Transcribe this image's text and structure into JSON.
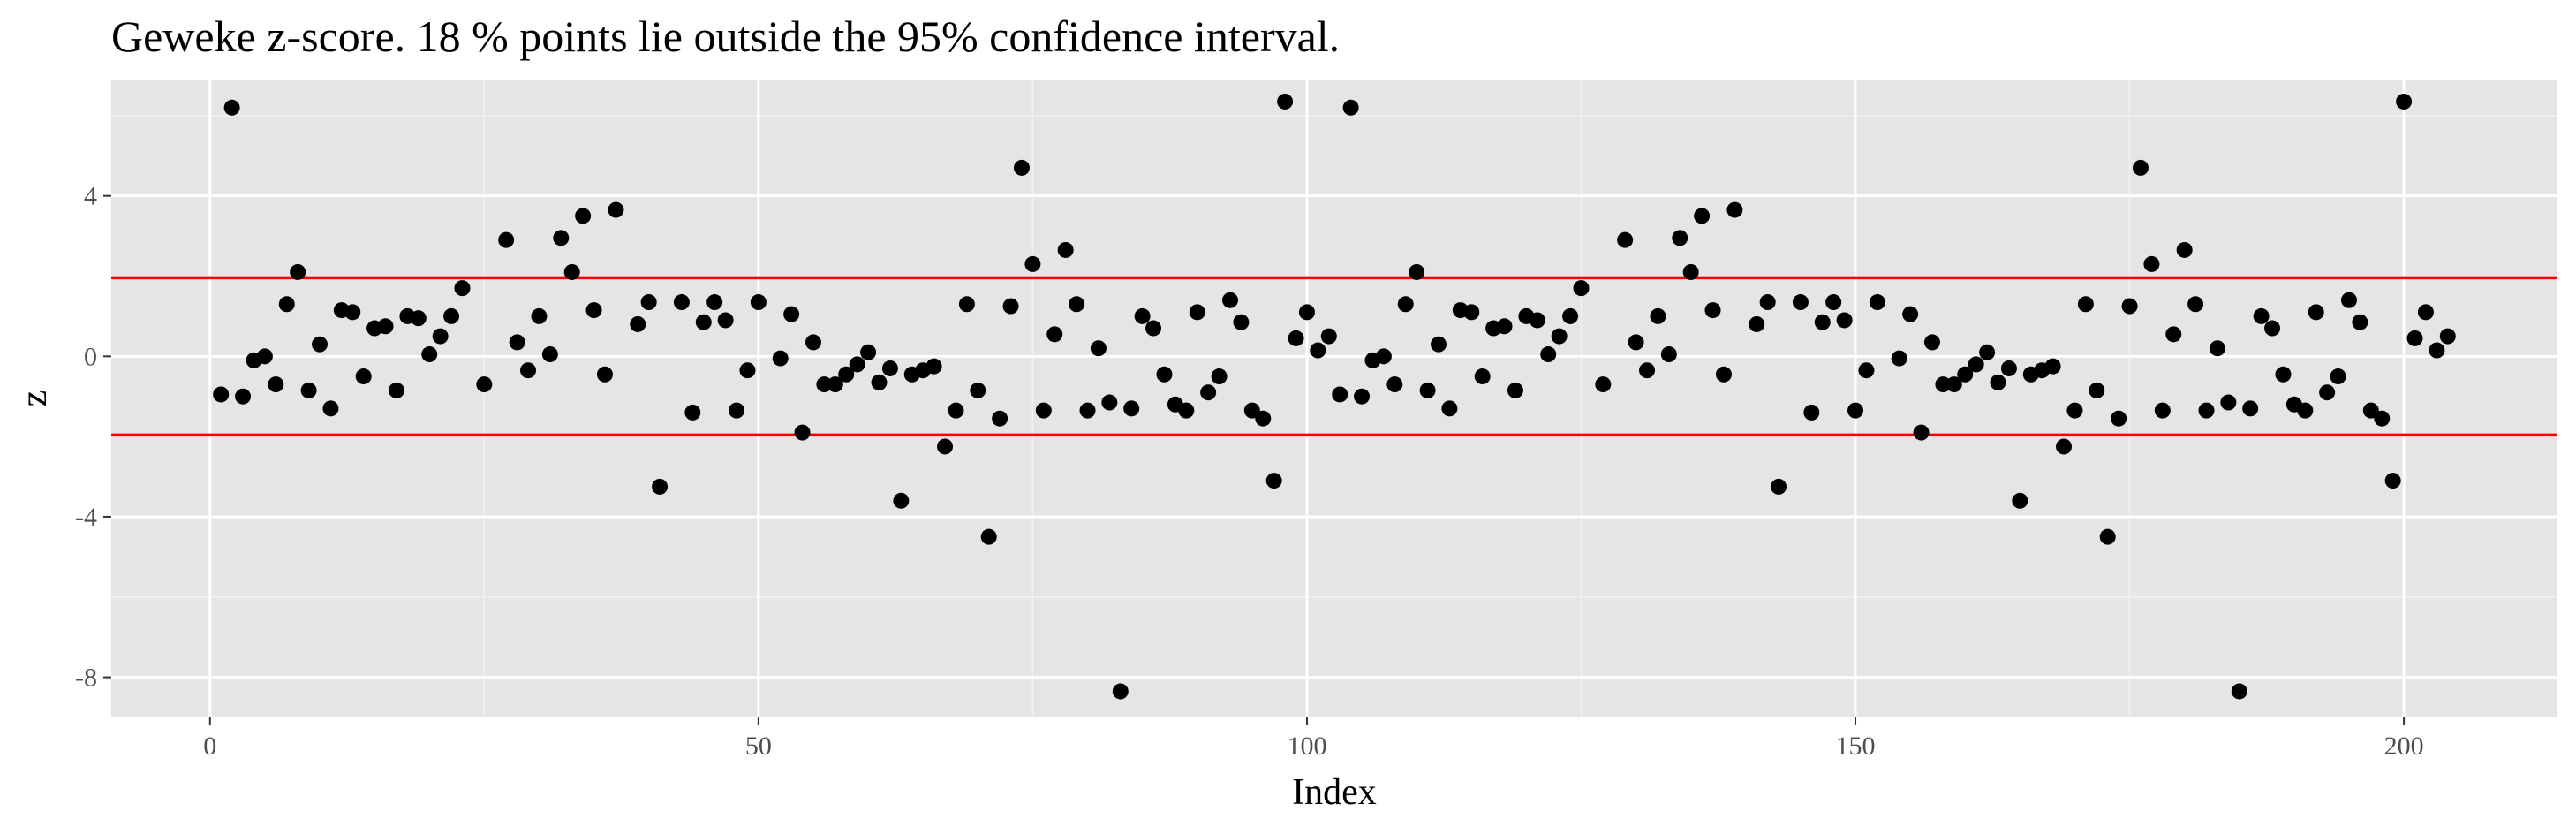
{
  "chart_data": {
    "type": "scatter",
    "title": "Geweke z-score. 18 % points lie outside the 95% confidence interval.",
    "xlabel": "Index",
    "ylabel": "z",
    "xlim": [
      -9,
      214
    ],
    "ylim": [
      -9,
      6.9
    ],
    "x_ticks": [
      0,
      50,
      100,
      150,
      200
    ],
    "x_tick_labels": [
      "0",
      "50",
      "100",
      "150",
      "200"
    ],
    "y_ticks": [
      -8,
      -4,
      0,
      4
    ],
    "y_tick_labels": [
      "-8",
      "-4",
      "0",
      "4"
    ],
    "grid": true,
    "legend": "none",
    "reference_lines": [
      {
        "y": 1.96,
        "color": "#ff0000"
      },
      {
        "y": -1.96,
        "color": "#ff0000"
      }
    ],
    "point_color": "#000000",
    "panel_background": "#e5e5e5",
    "points": [
      [
        1,
        -0.95
      ],
      [
        2,
        6.2
      ],
      [
        3,
        -1.0
      ],
      [
        4,
        -0.1
      ],
      [
        5,
        0.0
      ],
      [
        6,
        -0.7
      ],
      [
        7,
        1.3
      ],
      [
        8,
        2.1
      ],
      [
        9,
        -0.85
      ],
      [
        10,
        0.3
      ],
      [
        11,
        -1.3
      ],
      [
        12,
        1.15
      ],
      [
        13,
        1.1
      ],
      [
        14,
        -0.5
      ],
      [
        15,
        0.7
      ],
      [
        16,
        0.75
      ],
      [
        17,
        -0.85
      ],
      [
        18,
        1.0
      ],
      [
        19,
        0.95
      ],
      [
        20,
        0.05
      ],
      [
        21,
        0.5
      ],
      [
        22,
        1.0
      ],
      [
        23,
        1.7
      ],
      [
        25,
        -0.7
      ],
      [
        27,
        2.9
      ],
      [
        28,
        0.35
      ],
      [
        29,
        -0.35
      ],
      [
        30,
        1.0
      ],
      [
        31,
        0.05
      ],
      [
        32,
        2.95
      ],
      [
        33,
        2.1
      ],
      [
        34,
        3.5
      ],
      [
        35,
        1.15
      ],
      [
        36,
        -0.45
      ],
      [
        37,
        3.65
      ],
      [
        39,
        0.8
      ],
      [
        40,
        1.35
      ],
      [
        41,
        -3.25
      ],
      [
        43,
        1.35
      ],
      [
        44,
        -1.4
      ],
      [
        45,
        0.85
      ],
      [
        46,
        1.35
      ],
      [
        47,
        0.9
      ],
      [
        48,
        -1.35
      ],
      [
        49,
        -0.35
      ],
      [
        50,
        1.35
      ],
      [
        52,
        -0.05
      ],
      [
        53,
        1.05
      ],
      [
        54,
        -1.9
      ],
      [
        55,
        0.35
      ],
      [
        56,
        -0.7
      ],
      [
        57,
        -0.7
      ],
      [
        58,
        -0.45
      ],
      [
        59,
        -0.2
      ],
      [
        60,
        0.1
      ],
      [
        61,
        -0.65
      ],
      [
        62,
        -0.3
      ],
      [
        63,
        -3.6
      ],
      [
        64,
        -0.45
      ],
      [
        65,
        -0.35
      ],
      [
        66,
        -0.25
      ],
      [
        67,
        -2.25
      ],
      [
        68,
        -1.35
      ],
      [
        69,
        1.3
      ],
      [
        70,
        -0.85
      ],
      [
        71,
        -4.5
      ],
      [
        72,
        -1.55
      ],
      [
        73,
        1.25
      ],
      [
        74,
        4.7
      ],
      [
        75,
        2.3
      ],
      [
        76,
        -1.35
      ],
      [
        77,
        0.55
      ],
      [
        78,
        2.65
      ],
      [
        79,
        1.3
      ],
      [
        80,
        -1.35
      ],
      [
        81,
        0.2
      ],
      [
        82,
        -1.15
      ],
      [
        83,
        -8.35
      ],
      [
        84,
        -1.3
      ],
      [
        85,
        1.0
      ],
      [
        86,
        0.7
      ],
      [
        87,
        -0.45
      ],
      [
        88,
        -1.2
      ],
      [
        89,
        -1.35
      ],
      [
        90,
        1.1
      ],
      [
        91,
        -0.9
      ],
      [
        92,
        -0.5
      ],
      [
        93,
        1.4
      ],
      [
        94,
        0.85
      ],
      [
        95,
        -1.35
      ],
      [
        96,
        -1.55
      ],
      [
        97,
        -3.1
      ],
      [
        98,
        6.35
      ],
      [
        99,
        0.45
      ],
      [
        100,
        1.1
      ],
      [
        101,
        0.15
      ],
      [
        102,
        0.5
      ],
      [
        103,
        -0.95
      ],
      [
        104,
        6.2
      ],
      [
        105,
        -1.0
      ],
      [
        106,
        -0.1
      ],
      [
        107,
        0.0
      ],
      [
        108,
        -0.7
      ],
      [
        109,
        1.3
      ],
      [
        110,
        2.1
      ],
      [
        111,
        -0.85
      ],
      [
        112,
        0.3
      ],
      [
        113,
        -1.3
      ],
      [
        114,
        1.15
      ],
      [
        115,
        1.1
      ],
      [
        116,
        -0.5
      ],
      [
        117,
        0.7
      ],
      [
        118,
        0.75
      ],
      [
        119,
        -0.85
      ],
      [
        120,
        1.0
      ],
      [
        121,
        0.9
      ],
      [
        122,
        0.05
      ],
      [
        123,
        0.5
      ],
      [
        124,
        1.0
      ],
      [
        125,
        1.7
      ],
      [
        127,
        -0.7
      ],
      [
        129,
        2.9
      ],
      [
        130,
        0.35
      ],
      [
        131,
        -0.35
      ],
      [
        132,
        1.0
      ],
      [
        133,
        0.05
      ],
      [
        134,
        2.95
      ],
      [
        135,
        2.1
      ],
      [
        136,
        3.5
      ],
      [
        137,
        1.15
      ],
      [
        138,
        -0.45
      ],
      [
        139,
        3.65
      ],
      [
        141,
        0.8
      ],
      [
        142,
        1.35
      ],
      [
        143,
        -3.25
      ],
      [
        145,
        1.35
      ],
      [
        146,
        -1.4
      ],
      [
        147,
        0.85
      ],
      [
        148,
        1.35
      ],
      [
        149,
        0.9
      ],
      [
        150,
        -1.35
      ],
      [
        151,
        -0.35
      ],
      [
        152,
        1.35
      ],
      [
        154,
        -0.05
      ],
      [
        155,
        1.05
      ],
      [
        156,
        -1.9
      ],
      [
        157,
        0.35
      ],
      [
        158,
        -0.7
      ],
      [
        159,
        -0.7
      ],
      [
        160,
        -0.45
      ],
      [
        161,
        -0.2
      ],
      [
        162,
        0.1
      ],
      [
        163,
        -0.65
      ],
      [
        164,
        -0.3
      ],
      [
        165,
        -3.6
      ],
      [
        166,
        -0.45
      ],
      [
        167,
        -0.35
      ],
      [
        168,
        -0.25
      ],
      [
        169,
        -2.25
      ],
      [
        170,
        -1.35
      ],
      [
        171,
        1.3
      ],
      [
        172,
        -0.85
      ],
      [
        173,
        -4.5
      ],
      [
        174,
        -1.55
      ],
      [
        175,
        1.25
      ],
      [
        176,
        4.7
      ],
      [
        177,
        2.3
      ],
      [
        178,
        -1.35
      ],
      [
        179,
        0.55
      ],
      [
        180,
        2.65
      ],
      [
        181,
        1.3
      ],
      [
        182,
        -1.35
      ],
      [
        183,
        0.2
      ],
      [
        184,
        -1.15
      ],
      [
        185,
        -8.35
      ],
      [
        186,
        -1.3
      ],
      [
        187,
        1.0
      ],
      [
        188,
        0.7
      ],
      [
        189,
        -0.45
      ],
      [
        190,
        -1.2
      ],
      [
        191,
        -1.35
      ],
      [
        192,
        1.1
      ],
      [
        193,
        -0.9
      ],
      [
        194,
        -0.5
      ],
      [
        195,
        1.4
      ],
      [
        196,
        0.85
      ],
      [
        197,
        -1.35
      ],
      [
        198,
        -1.55
      ],
      [
        199,
        -3.1
      ],
      [
        200,
        6.35
      ],
      [
        201,
        0.45
      ],
      [
        202,
        1.1
      ],
      [
        203,
        0.15
      ],
      [
        204,
        0.5
      ]
    ]
  }
}
